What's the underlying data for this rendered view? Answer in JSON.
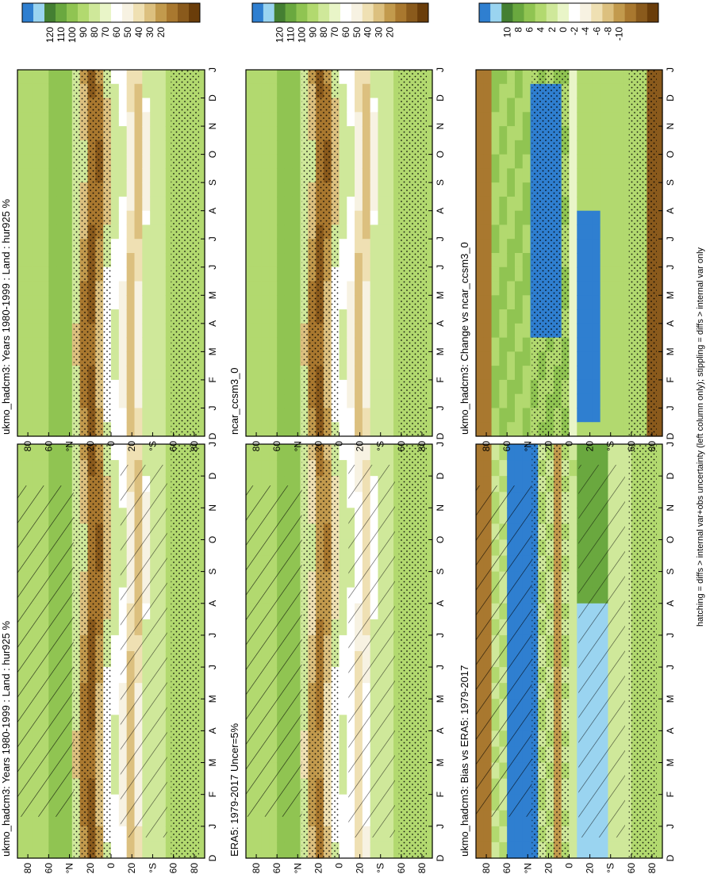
{
  "figure": {
    "footnote": "hatching = diffs > internal var+obs uncertainty (left column only); stippling = diffs > internal var only"
  },
  "colors": {
    "abs_scale": [
      "#6a3d0a",
      "#8a5a1c",
      "#a9782f",
      "#c29a4d",
      "#dcc07f",
      "#efe0b3",
      "#f7f2e2",
      "#ffffff",
      "#e9f5c8",
      "#cfe89a",
      "#b2d96f",
      "#90c452",
      "#6aa83f",
      "#447f32",
      "#9ad4f0",
      "#2f7fd0"
    ],
    "diff_scale": [
      "#6a3d0a",
      "#8a5a1c",
      "#a9782f",
      "#c29a4d",
      "#dcc07f",
      "#efe0b3",
      "#f7f2e2",
      "#ffffff",
      "#e9f5c8",
      "#cfe89a",
      "#b2d96f",
      "#90c452",
      "#6aa83f",
      "#447f32",
      "#9ad4f0",
      "#2f7fd0"
    ]
  },
  "chart_data": [
    {
      "type": "heatmap",
      "panel": "top-left",
      "title": "ukmo_hadcm3: Years 1980-1999 : Land : hur925 %",
      "x_ticks": [
        "D",
        "J",
        "F",
        "M",
        "A",
        "M",
        "J",
        "J",
        "A",
        "S",
        "O",
        "N",
        "D",
        "J"
      ],
      "y_ticks": [
        "80",
        "60",
        "°N",
        "20",
        "0",
        "20",
        "°S",
        "60",
        "80"
      ],
      "ylim": [
        -90,
        90
      ],
      "field": "abs",
      "hatching": true,
      "stippling": true,
      "colorbar_labels": [
        "120",
        "110",
        "100",
        "90",
        "80",
        "70",
        "60",
        "50",
        "40",
        "30",
        "20"
      ]
    },
    {
      "type": "heatmap",
      "panel": "top-right",
      "title": "ukmo_hadcm3: Years 1980-1999 : Land : hur925 %",
      "x_ticks": [
        "D",
        "J",
        "F",
        "M",
        "A",
        "M",
        "J",
        "J",
        "A",
        "S",
        "O",
        "N",
        "D",
        "J"
      ],
      "y_ticks": [
        "80",
        "60",
        "°N",
        "20",
        "0",
        "20",
        "°S",
        "60",
        "80"
      ],
      "ylim": [
        -90,
        90
      ],
      "field": "abs",
      "hatching": false,
      "stippling": true,
      "colorbar_labels": [
        "120",
        "110",
        "100",
        "90",
        "80",
        "70",
        "60",
        "50",
        "40",
        "30",
        "20"
      ]
    },
    {
      "type": "heatmap",
      "panel": "middle-left",
      "title": "ERA5: 1979-2017 Uncer=5%",
      "x_ticks": [
        "D",
        "J",
        "F",
        "M",
        "A",
        "M",
        "J",
        "J",
        "A",
        "S",
        "O",
        "N",
        "D",
        "J"
      ],
      "y_ticks": [
        "80",
        "60",
        "°N",
        "20",
        "0",
        "20",
        "°S",
        "60",
        "80"
      ],
      "ylim": [
        -90,
        90
      ],
      "field": "abs_obs",
      "hatching": true,
      "stippling": true,
      "colorbar_labels": [
        "120",
        "110",
        "100",
        "90",
        "80",
        "70",
        "60",
        "50",
        "40",
        "30",
        "20"
      ]
    },
    {
      "type": "heatmap",
      "panel": "middle-right",
      "title": "ncar_ccsm3_0",
      "x_ticks": [
        "D",
        "J",
        "F",
        "M",
        "A",
        "M",
        "J",
        "J",
        "A",
        "S",
        "O",
        "N",
        "D",
        "J"
      ],
      "y_ticks": [
        "80",
        "60",
        "°N",
        "20",
        "0",
        "20",
        "°S",
        "60",
        "80"
      ],
      "ylim": [
        -90,
        90
      ],
      "field": "abs",
      "hatching": false,
      "stippling": true,
      "colorbar_labels": [
        "120",
        "110",
        "100",
        "90",
        "80",
        "70",
        "60",
        "50",
        "40",
        "30",
        "20"
      ]
    },
    {
      "type": "heatmap",
      "panel": "bottom-left",
      "title": "ukmo_hadcm3: Bias vs ERA5: 1979-2017",
      "x_ticks": [
        "D",
        "J",
        "F",
        "M",
        "A",
        "M",
        "J",
        "J",
        "A",
        "S",
        "O",
        "N",
        "D",
        "J"
      ],
      "y_ticks": [
        "80",
        "60",
        "°N",
        "20",
        "0",
        "20",
        "°S",
        "60",
        "80"
      ],
      "ylim": [
        -90,
        90
      ],
      "field": "diff",
      "hatching": true,
      "stippling": true,
      "colorbar_labels": [
        "10",
        "8",
        "6",
        "4",
        "2",
        "0",
        "-2",
        "-4",
        "-6",
        "-8",
        "-10"
      ]
    },
    {
      "type": "heatmap",
      "panel": "bottom-right",
      "title": "ukmo_hadcm3: Change vs ncar_ccsm3_0",
      "x_ticks": [
        "D",
        "J",
        "F",
        "M",
        "A",
        "M",
        "J",
        "J",
        "A",
        "S",
        "O",
        "N",
        "D",
        "J"
      ],
      "y_ticks": [
        "80",
        "60",
        "°N",
        "20",
        "0",
        "20",
        "°S",
        "60",
        "80"
      ],
      "ylim": [
        -90,
        90
      ],
      "field": "diff2",
      "hatching": false,
      "stippling": true,
      "colorbar_labels": [
        "10",
        "8",
        "6",
        "4",
        "2",
        "0",
        "-2",
        "-4",
        "-6",
        "-8",
        "-10"
      ]
    }
  ]
}
